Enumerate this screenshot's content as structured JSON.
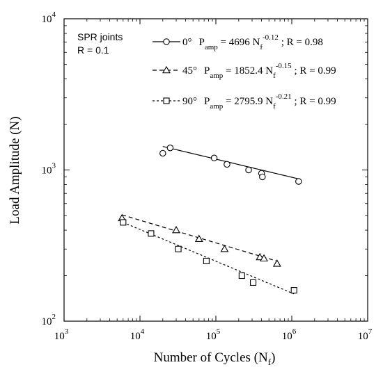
{
  "chart_data": {
    "type": "scatter",
    "xlabel": "Number of Cycles (N",
    "xlabel_sub": "f",
    "xlabel_close": ")",
    "ylabel": "Load Amplitude (N)",
    "xscale": "log",
    "yscale": "log",
    "xlim": [
      1000,
      10000000
    ],
    "ylim": [
      100,
      10000
    ],
    "grid": false,
    "x_ticks": [
      {
        "value": 1000,
        "base": "10",
        "exp": "3"
      },
      {
        "value": 10000,
        "base": "10",
        "exp": "4"
      },
      {
        "value": 100000,
        "base": "10",
        "exp": "5"
      },
      {
        "value": 1000000,
        "base": "10",
        "exp": "6"
      },
      {
        "value": 10000000,
        "base": "10",
        "exp": "7"
      }
    ],
    "y_ticks": [
      {
        "value": 100,
        "base": "10",
        "exp": "2"
      },
      {
        "value": 1000,
        "base": "10",
        "exp": "3"
      },
      {
        "value": 10000,
        "base": "10",
        "exp": "4"
      }
    ],
    "annotation_lines": [
      "SPR joints",
      "R = 0.1"
    ],
    "legend_placement": "top-right",
    "series": [
      {
        "marker": "circle",
        "line": "solid",
        "angle": "0°",
        "eq_var": "P",
        "eq_sub": "amp",
        "eq_coef": " = 4696 N",
        "eq_nsub": "f",
        "eq_exp": "-0.12",
        "eq_r": " ; R = 0.98",
        "points": [
          [
            20000,
            1290
          ],
          [
            25000,
            1400
          ],
          [
            95000,
            1200
          ],
          [
            140000,
            1090
          ],
          [
            270000,
            1000
          ],
          [
            400000,
            950
          ],
          [
            410000,
            900
          ],
          [
            1230000,
            840
          ]
        ],
        "fit": {
          "coef": 4696,
          "exp": -0.12,
          "x_range": [
            20000,
            1230000
          ]
        }
      },
      {
        "marker": "triangle",
        "line": "dashed",
        "angle": "45°",
        "eq_var": "P",
        "eq_sub": "amp",
        "eq_coef": " = 1852.4 N",
        "eq_nsub": "f",
        "eq_exp": "-0.15",
        "eq_r": " ; R = 0.99",
        "points": [
          [
            5800,
            480
          ],
          [
            30000,
            400
          ],
          [
            60000,
            350
          ],
          [
            130000,
            300
          ],
          [
            380000,
            265
          ],
          [
            430000,
            260
          ],
          [
            640000,
            240
          ]
        ],
        "fit": {
          "coef": 1852.4,
          "exp": -0.15,
          "x_range": [
            5800,
            640000
          ]
        }
      },
      {
        "marker": "square",
        "line": "dotted",
        "angle": "90°",
        "eq_var": "P",
        "eq_sub": "amp",
        "eq_coef": " = 2795.9 N",
        "eq_nsub": "f",
        "eq_exp": "-0.21",
        "eq_r": " ; R = 0.99",
        "points": [
          [
            6000,
            450
          ],
          [
            14000,
            380
          ],
          [
            32000,
            300
          ],
          [
            75000,
            250
          ],
          [
            220000,
            200
          ],
          [
            310000,
            180
          ],
          [
            1070000,
            160
          ]
        ],
        "fit": {
          "coef": 2795.9,
          "exp": -0.21,
          "x_range": [
            6000,
            1070000
          ]
        }
      }
    ]
  }
}
